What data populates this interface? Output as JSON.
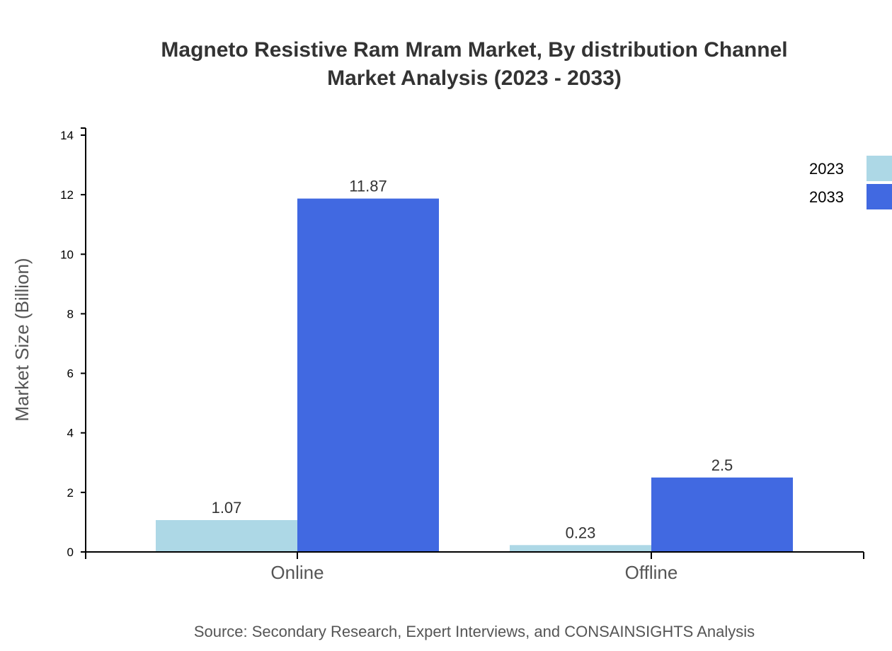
{
  "chart_data": {
    "type": "bar",
    "title": [
      "Magneto Resistive Ram Mram Market, By distribution Channel",
      "Market Analysis (2023 - 2033)"
    ],
    "xlabel": "",
    "ylabel": "Market Size (Billion)",
    "ylim": [
      0,
      14
    ],
    "yticks": [
      0,
      2,
      4,
      6,
      8,
      10,
      12,
      14
    ],
    "categories": [
      "Online",
      "Offline"
    ],
    "series": [
      {
        "name": "2023",
        "values": [
          1.07,
          0.23
        ],
        "color": "#add8e6"
      },
      {
        "name": "2033",
        "values": [
          11.87,
          2.5
        ],
        "color": "#4169e1"
      }
    ],
    "legend": "top-right",
    "grid": false,
    "source": "Source: Secondary Research, Expert Interviews, and CONSAINSIGHTS Analysis"
  }
}
